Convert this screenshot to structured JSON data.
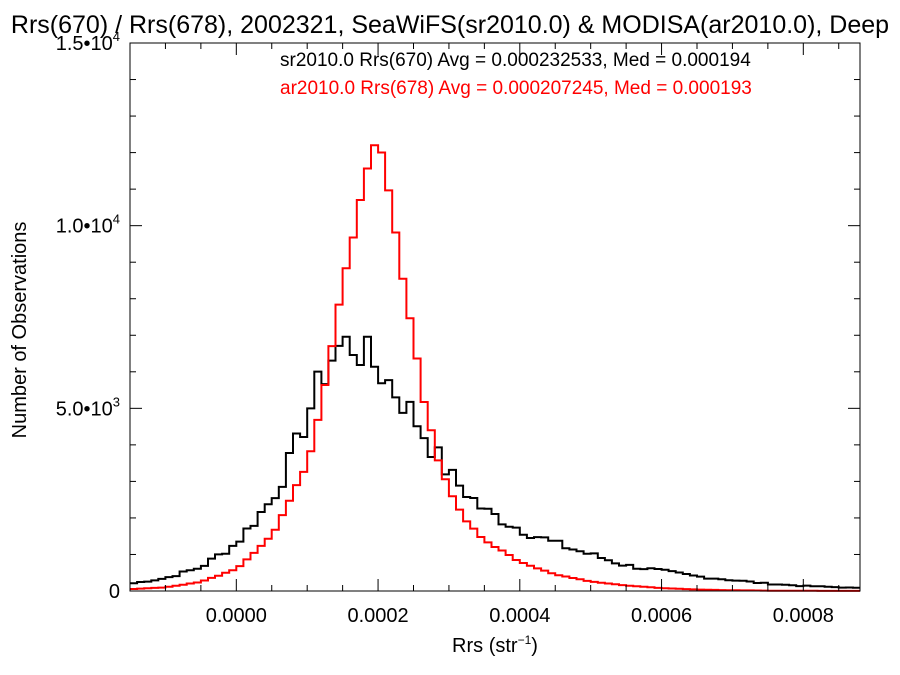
{
  "chart_data": {
    "type": "line",
    "title": "Rrs(670) / Rrs(678), 2002321, SeaWiFS(sr2010.0) & MODISA(ar2010.0), Deep",
    "xlabel_main": "Rrs (str",
    "xlabel_sup": "−1",
    "xlabel_close": ")",
    "ylabel": "Number of Observations",
    "xlim": [
      -0.00015,
      0.00088
    ],
    "ylim": [
      0,
      15000
    ],
    "step": 1e-05,
    "grid": false,
    "x_ticks": [
      {
        "value": 0.0,
        "label": "0.0000"
      },
      {
        "value": 0.0002,
        "label": "0.0002"
      },
      {
        "value": 0.0004,
        "label": "0.0004"
      },
      {
        "value": 0.0006,
        "label": "0.0006"
      },
      {
        "value": 0.0008,
        "label": "0.0008"
      }
    ],
    "y_ticks": [
      {
        "value": 0,
        "mant": "0",
        "exp": ""
      },
      {
        "value": 5000,
        "mant": "5.0•10",
        "exp": "3"
      },
      {
        "value": 10000,
        "mant": "1.0•10",
        "exp": "4"
      },
      {
        "value": 15000,
        "mant": "1.5•10",
        "exp": "4"
      }
    ],
    "series": [
      {
        "name": "sr2010.0 Rrs(670) Avg = 0.000232533, Med = 0.000194",
        "color": "#000000",
        "keypoints": [
          [
            -0.00015,
            200
          ],
          [
            -0.0001,
            350
          ],
          [
            -5e-05,
            650
          ],
          [
            0.0,
            1300
          ],
          [
            5e-05,
            2500
          ],
          [
            8e-05,
            3700
          ],
          [
            0.0001,
            4800
          ],
          [
            0.00012,
            5800
          ],
          [
            0.00014,
            6600
          ],
          [
            0.00016,
            6800
          ],
          [
            0.00018,
            6500
          ],
          [
            0.0002,
            6100
          ],
          [
            0.00022,
            5600
          ],
          [
            0.00025,
            4800
          ],
          [
            0.00028,
            3800
          ],
          [
            0.0003,
            3200
          ],
          [
            0.00032,
            2800
          ],
          [
            0.00035,
            2200
          ],
          [
            0.0004,
            1700
          ],
          [
            0.00045,
            1300
          ],
          [
            0.0005,
            1000
          ],
          [
            0.00055,
            700
          ],
          [
            0.0006,
            550
          ],
          [
            0.00065,
            400
          ],
          [
            0.0007,
            300
          ],
          [
            0.00075,
            200
          ],
          [
            0.0008,
            140
          ],
          [
            0.00088,
            80
          ]
        ]
      },
      {
        "name": "ar2010.0 Rrs(678) Avg = 0.000207245, Med = 0.000193",
        "color": "#ff0000",
        "keypoints": [
          [
            -0.00015,
            50
          ],
          [
            -0.0001,
            100
          ],
          [
            -5e-05,
            250
          ],
          [
            0.0,
            600
          ],
          [
            5e-05,
            1500
          ],
          [
            0.0001,
            3500
          ],
          [
            0.00012,
            5000
          ],
          [
            0.00014,
            7300
          ],
          [
            0.00016,
            9200
          ],
          [
            0.00018,
            11200
          ],
          [
            0.0002,
            12500
          ],
          [
            0.00022,
            10500
          ],
          [
            0.00024,
            8000
          ],
          [
            0.00026,
            5700
          ],
          [
            0.00028,
            3900
          ],
          [
            0.0003,
            2800
          ],
          [
            0.00032,
            2000
          ],
          [
            0.00035,
            1400
          ],
          [
            0.0004,
            800
          ],
          [
            0.00045,
            450
          ],
          [
            0.0005,
            260
          ],
          [
            0.00055,
            150
          ],
          [
            0.0006,
            80
          ],
          [
            0.00065,
            40
          ],
          [
            0.0007,
            20
          ],
          [
            0.00075,
            10
          ],
          [
            0.0008,
            5
          ],
          [
            0.00088,
            2
          ]
        ]
      }
    ]
  }
}
